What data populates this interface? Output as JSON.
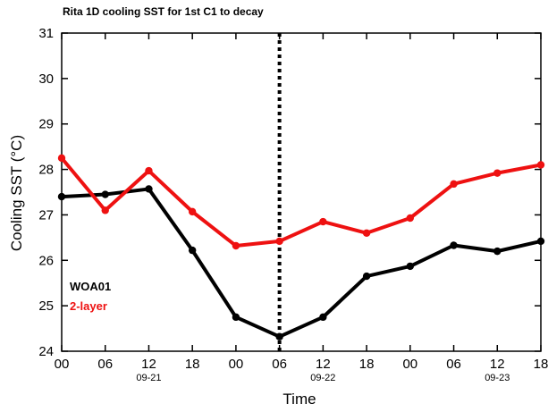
{
  "chart_data": {
    "type": "line",
    "title": "Rita 1D cooling SST for 1st C1 to decay",
    "xlabel": "Time",
    "ylabel": "Cooling SST (°C)",
    "ylim": [
      24,
      31
    ],
    "yticks": [
      "24",
      "25",
      "26",
      "27",
      "28",
      "29",
      "30",
      "31"
    ],
    "categories": [
      "00",
      "06",
      "12",
      "18",
      "00",
      "06",
      "12",
      "18",
      "00",
      "06",
      "12",
      "18"
    ],
    "date_labels": [
      {
        "index": 2,
        "text": "09-21"
      },
      {
        "index": 6,
        "text": "09-22"
      },
      {
        "index": 10,
        "text": "09-23"
      }
    ],
    "marker_line": {
      "index": 5,
      "style": "dotted"
    },
    "series": [
      {
        "name": "WOA01",
        "color": "#000000",
        "values": [
          27.4,
          27.45,
          27.57,
          26.22,
          24.75,
          24.32,
          24.75,
          25.65,
          25.87,
          26.33,
          26.2,
          26.42
        ]
      },
      {
        "name": "2-layer",
        "color": "#ee1111",
        "values": [
          28.25,
          27.1,
          27.97,
          27.07,
          26.32,
          26.42,
          26.85,
          26.6,
          26.93,
          27.68,
          27.92,
          28.1
        ]
      }
    ],
    "legend": [
      {
        "text": "WOA01",
        "color": "#000000"
      },
      {
        "text": "2-layer",
        "color": "#ee1111"
      }
    ],
    "grid": false
  }
}
